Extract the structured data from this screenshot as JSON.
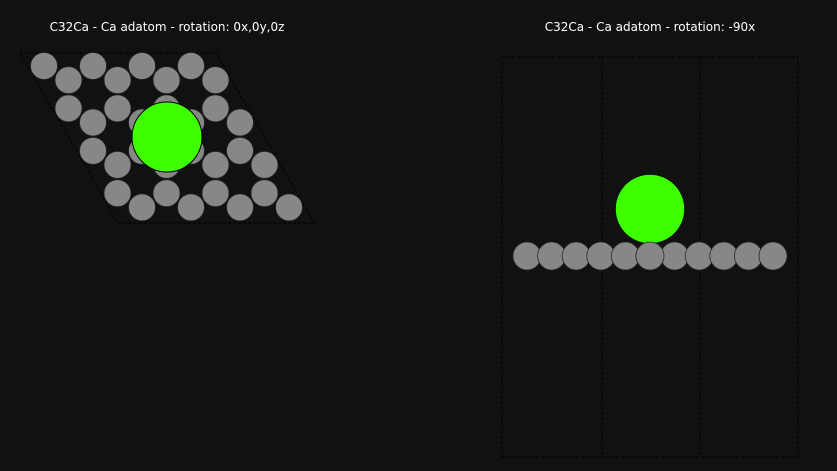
{
  "panels": [
    {
      "title": "C32Ca - Ca adatom - rotation: 0x,0y,0z",
      "view": "top"
    },
    {
      "title": "C32Ca - Ca adatom - rotation: -90x",
      "view": "side"
    }
  ],
  "structure": {
    "formula": "C32Ca",
    "substrate_element": "C",
    "substrate_count": 32,
    "adatom_element": "Ca",
    "adatom_count": 1
  },
  "colors": {
    "background": "#111111",
    "carbon": "#878787",
    "calcium": "#3dff00",
    "cell_edge": "#000000"
  }
}
